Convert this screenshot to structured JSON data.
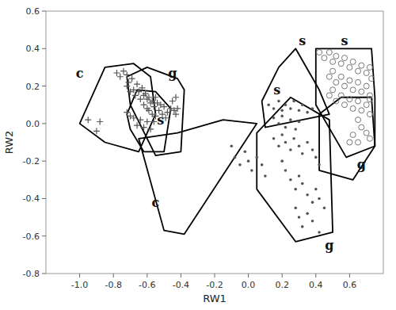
{
  "chart_data": {
    "type": "scatter",
    "xlabel": "RW1",
    "ylabel": "RW2",
    "xlim": [
      -1.2,
      0.8
    ],
    "ylim": [
      -0.8,
      0.6
    ],
    "xticks": [
      {
        "value": -1.0,
        "label": "-1.0"
      },
      -0.8,
      -0.6,
      -0.4,
      -0.2,
      {
        "value": 0.0,
        "label": "0.0"
      },
      0.2,
      0.4,
      0.6
    ],
    "yticks": [
      -0.8,
      -0.6,
      -0.4,
      -0.2,
      {
        "value": 0.0,
        "label": "0.0"
      },
      0.2,
      0.4,
      0.6
    ],
    "series": [
      {
        "marker": "plus",
        "color": "#555555",
        "x": [
          -0.95,
          -0.9,
          -0.88,
          -0.78,
          -0.76,
          -0.74,
          -0.72,
          -0.72,
          -0.71,
          -0.7,
          -0.69,
          -0.68,
          -0.67,
          -0.66,
          -0.65,
          -0.64,
          -0.63,
          -0.62,
          -0.62,
          -0.61,
          -0.6,
          -0.6,
          -0.59,
          -0.59,
          -0.58,
          -0.57,
          -0.57,
          -0.56,
          -0.55,
          -0.55,
          -0.54,
          -0.53,
          -0.52,
          -0.51,
          -0.5,
          -0.49,
          -0.48,
          -0.46,
          -0.45,
          -0.44,
          -0.43,
          -0.43,
          -0.42,
          -0.56,
          -0.58,
          -0.6,
          -0.62,
          -0.64,
          -0.66,
          -0.68,
          -0.7,
          -0.72
        ],
        "values": [
          0.02,
          -0.04,
          0.01,
          0.27,
          0.25,
          0.28,
          0.26,
          0.2,
          0.22,
          0.17,
          0.24,
          0.18,
          0.15,
          0.21,
          0.17,
          0.13,
          0.19,
          0.15,
          0.1,
          0.16,
          0.13,
          0.08,
          0.14,
          0.07,
          0.11,
          0.12,
          0.05,
          0.09,
          0.14,
          0.04,
          0.11,
          0.07,
          0.1,
          0.05,
          0.09,
          0.03,
          0.06,
          0.08,
          0.12,
          0.07,
          0.05,
          0.14,
          0.08,
          0.01,
          -0.03,
          0.01,
          -0.02,
          0.02,
          -0.01,
          0.03,
          0.04,
          0.06
        ]
      },
      {
        "marker": "point",
        "color": "#555555",
        "x": [
          0.12,
          0.15,
          0.18,
          0.2,
          0.22,
          0.25,
          0.27,
          0.3,
          0.32,
          0.35,
          0.38,
          0.15,
          0.18,
          0.2,
          0.22,
          0.25,
          0.28,
          0.3,
          0.15,
          0.18,
          0.2,
          0.22,
          0.25,
          0.27,
          0.3,
          0.32,
          0.35,
          0.38,
          0.4,
          0.42,
          0.2,
          0.22,
          0.25,
          0.28,
          0.3,
          0.32,
          0.35,
          0.38,
          0.4,
          0.42,
          0.45,
          0.28,
          0.3,
          0.32,
          0.35,
          0.38,
          0.42,
          -0.1,
          -0.08,
          -0.05,
          -0.02,
          0.0,
          0.02,
          0.05,
          0.08,
          0.1
        ],
        "values": [
          0.1,
          0.08,
          0.12,
          0.07,
          0.1,
          0.08,
          0.12,
          0.07,
          0.1,
          0.06,
          0.08,
          0.03,
          0.0,
          0.04,
          -0.02,
          0.02,
          -0.03,
          0.01,
          -0.08,
          -0.12,
          -0.06,
          -0.1,
          -0.14,
          -0.08,
          -0.12,
          -0.16,
          -0.1,
          -0.14,
          -0.18,
          -0.22,
          -0.2,
          -0.25,
          -0.3,
          -0.35,
          -0.28,
          -0.32,
          -0.38,
          -0.42,
          -0.35,
          -0.4,
          -0.45,
          -0.45,
          -0.5,
          -0.55,
          -0.48,
          -0.52,
          -0.58,
          -0.12,
          -0.18,
          -0.22,
          -0.15,
          -0.2,
          -0.25,
          -0.18,
          -0.22,
          -0.28
        ]
      },
      {
        "marker": "circle",
        "color": "#777777",
        "x": [
          0.42,
          0.45,
          0.48,
          0.5,
          0.52,
          0.55,
          0.57,
          0.6,
          0.62,
          0.65,
          0.67,
          0.7,
          0.72,
          0.73,
          0.48,
          0.5,
          0.52,
          0.55,
          0.57,
          0.6,
          0.62,
          0.65,
          0.67,
          0.7,
          0.72,
          0.48,
          0.5,
          0.52,
          0.55,
          0.57,
          0.6,
          0.62,
          0.65,
          0.67,
          0.7,
          0.72,
          0.65,
          0.67,
          0.7,
          0.72,
          0.65,
          0.62,
          0.6,
          0.72
        ],
        "values": [
          0.38,
          0.35,
          0.38,
          0.33,
          0.36,
          0.32,
          0.35,
          0.3,
          0.33,
          0.28,
          0.31,
          0.27,
          0.3,
          0.24,
          0.25,
          0.28,
          0.22,
          0.25,
          0.2,
          0.23,
          0.18,
          0.22,
          0.17,
          0.2,
          0.15,
          0.15,
          0.18,
          0.12,
          0.15,
          0.1,
          0.13,
          0.08,
          0.12,
          0.07,
          0.1,
          0.05,
          0.02,
          -0.02,
          -0.05,
          -0.08,
          -0.1,
          -0.06,
          -0.1,
          0.13
        ]
      }
    ],
    "polygons": [
      {
        "color": "black",
        "x": [
          -1.0,
          -0.85,
          -0.68,
          -0.58,
          -0.55,
          -0.65,
          -0.85
        ],
        "y": [
          0.0,
          0.3,
          0.32,
          0.25,
          0.05,
          -0.15,
          -0.1
        ]
      },
      {
        "color": "black",
        "x": [
          -0.72,
          -0.6,
          -0.42,
          -0.38,
          -0.4,
          -0.55,
          -0.7
        ],
        "y": [
          0.25,
          0.3,
          0.24,
          0.18,
          -0.15,
          -0.17,
          0.1
        ]
      },
      {
        "color": "black",
        "x": [
          -0.72,
          -0.66,
          -0.55,
          -0.46,
          -0.5,
          -0.62,
          -0.7
        ],
        "y": [
          0.05,
          0.18,
          0.17,
          0.08,
          -0.15,
          -0.15,
          -0.03
        ]
      },
      {
        "color": "black",
        "x": [
          -0.65,
          -0.5,
          -0.38,
          0.05,
          -0.15,
          -0.42
        ],
        "y": [
          -0.08,
          -0.57,
          -0.59,
          0.0,
          0.02,
          -0.05
        ]
      },
      {
        "color": "black",
        "x": [
          0.05,
          0.25,
          0.48,
          0.5,
          0.28,
          0.05
        ],
        "y": [
          -0.05,
          0.14,
          0.02,
          -0.58,
          -0.63,
          -0.35
        ]
      },
      {
        "color": "black",
        "x": [
          0.28,
          0.42,
          0.48,
          0.1,
          0.08,
          0.18
        ],
        "y": [
          0.4,
          0.18,
          0.05,
          -0.02,
          0.12,
          0.3
        ]
      },
      {
        "color": "black",
        "x": [
          0.4,
          0.73,
          0.75,
          0.75,
          0.58,
          0.4
        ],
        "y": [
          0.4,
          0.4,
          0.14,
          -0.12,
          -0.18,
          0.1
        ]
      },
      {
        "color": "black",
        "x": [
          0.55,
          0.73,
          0.75,
          0.62,
          0.42,
          0.42
        ],
        "y": [
          0.14,
          0.14,
          -0.12,
          -0.3,
          -0.25,
          0.05
        ]
      }
    ],
    "annotations": [
      {
        "x": -1.0,
        "y": 0.27,
        "text": "c"
      },
      {
        "x": -0.55,
        "y": -0.42,
        "text": "c"
      },
      {
        "x": -0.45,
        "y": 0.27,
        "text": "g"
      },
      {
        "x": -0.52,
        "y": 0.02,
        "text": "s"
      },
      {
        "x": 0.32,
        "y": 0.44,
        "text": "s"
      },
      {
        "x": 0.17,
        "y": 0.18,
        "text": "s"
      },
      {
        "x": 0.57,
        "y": 0.44,
        "text": "s"
      },
      {
        "x": 0.67,
        "y": -0.22,
        "text": "g"
      },
      {
        "x": 0.48,
        "y": -0.65,
        "text": "g"
      }
    ]
  }
}
